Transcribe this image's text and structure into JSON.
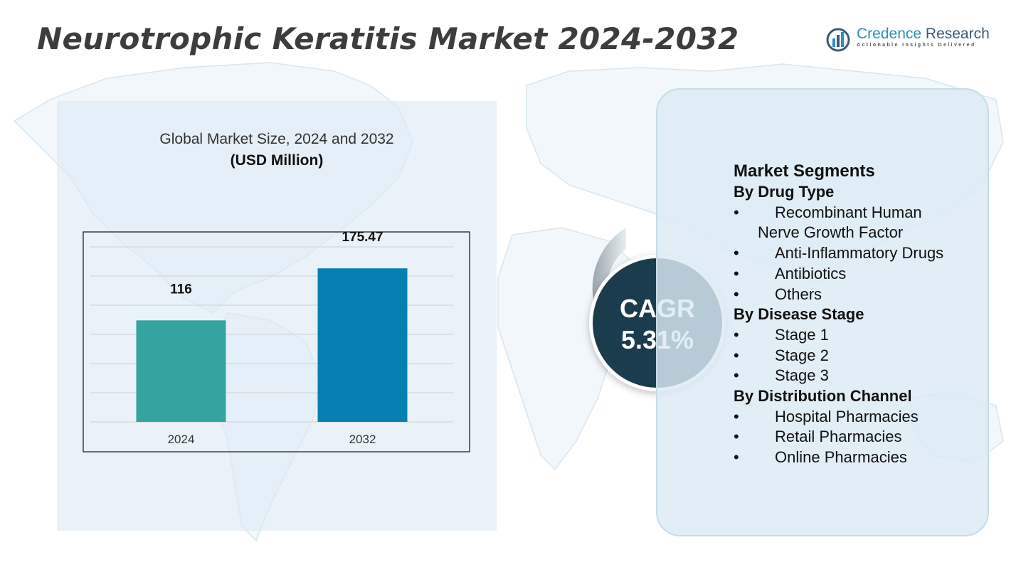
{
  "title": "Neurotrophic Keratitis Market 2024-2032",
  "logo": {
    "name_part1": "Credence",
    "name_part2": "Research",
    "tagline": "Actionable Insights Delivered"
  },
  "colors": {
    "bar_2024": "#35a39f",
    "bar_2032": "#0680b1",
    "cagr_circle": "#1b3c4d",
    "panel_bg": "#dbeaf4"
  },
  "chart_data": {
    "type": "bar",
    "title": "Global Market Size, 2024 and 2032",
    "unit": "(USD Million)",
    "categories": [
      "2024",
      "2032"
    ],
    "values": [
      116,
      175.47
    ],
    "value_labels": [
      "116",
      "175.47"
    ],
    "ylim": [
      0,
      200
    ],
    "grid": true
  },
  "cagr": {
    "label": "CAGR",
    "value": "5.31%"
  },
  "segments": {
    "title": "Market Segments",
    "groups": [
      {
        "name": "By Drug Type",
        "items": [
          "Recombinant Human",
          "Nerve Growth Factor",
          "Anti-Inflammatory Drugs",
          "Antibiotics",
          "Others"
        ]
      },
      {
        "name": "By Disease Stage",
        "items": [
          "Stage 1",
          "Stage 2",
          "Stage 3"
        ]
      },
      {
        "name": "By Distribution Channel",
        "items": [
          "Hospital Pharmacies",
          "Retail Pharmacies",
          "Online Pharmacies"
        ]
      }
    ]
  }
}
